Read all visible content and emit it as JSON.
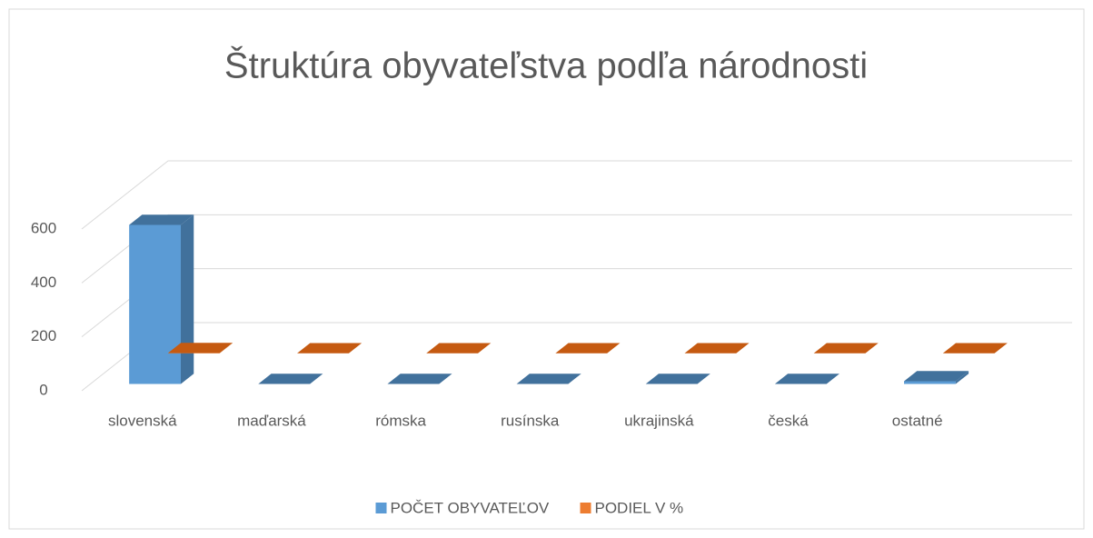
{
  "chart_data": {
    "type": "bar3d",
    "title": "Štruktúra obyvateľstva podľa národnosti",
    "categories": [
      "slovenská",
      "maďarská",
      "rómska",
      "rusínska",
      "ukrajinská",
      "česká",
      "ostatné"
    ],
    "series": [
      {
        "name": "POČET OBYVATEĽOV",
        "color": "#5b9bd5",
        "values": [
          590,
          0,
          0,
          0,
          0,
          0,
          10
        ]
      },
      {
        "name": "PODIEL V %",
        "color": "#ed7d31",
        "values": [
          1,
          0,
          0,
          0,
          0,
          0,
          0
        ]
      }
    ],
    "ylim": [
      0,
      600
    ],
    "yticks": [
      0,
      200,
      400,
      600
    ],
    "grid": true,
    "legend": "bottom"
  }
}
